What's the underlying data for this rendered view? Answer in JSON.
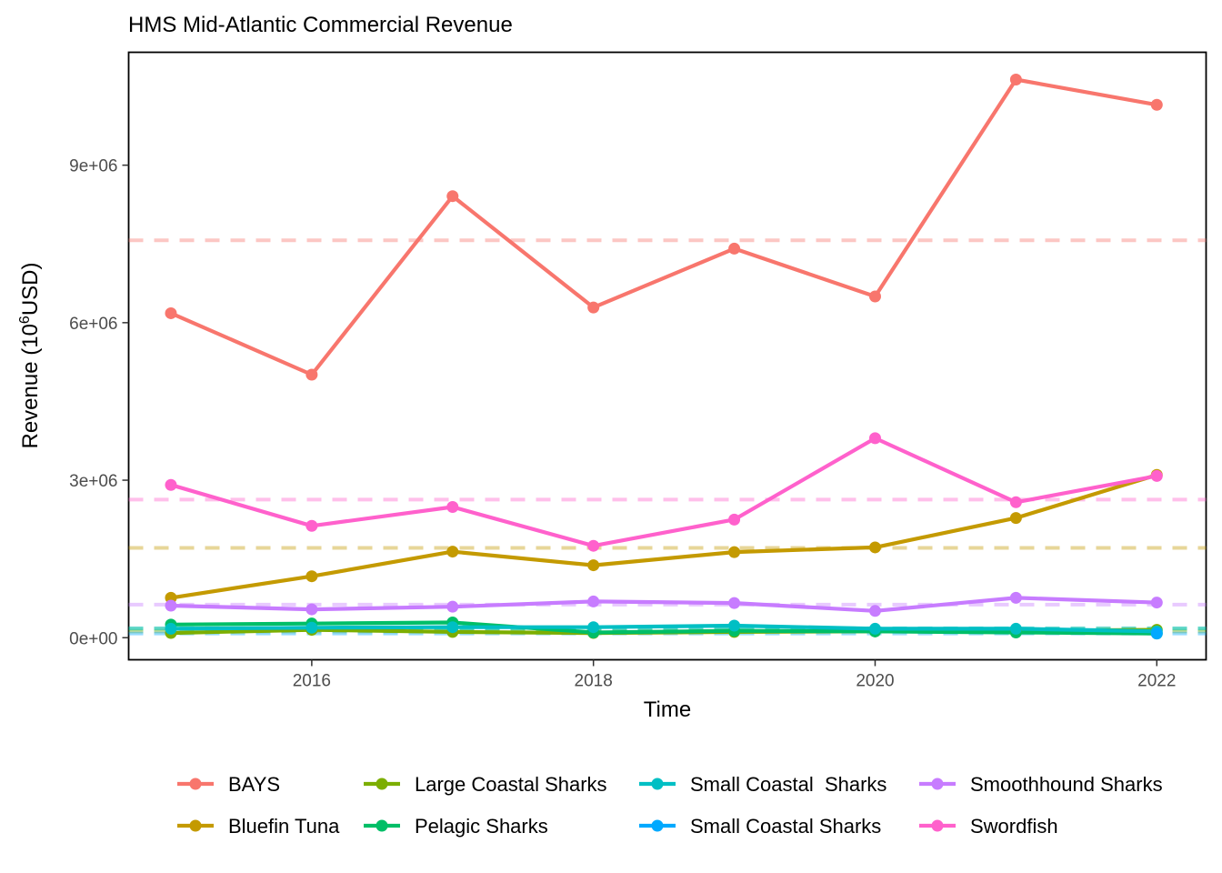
{
  "chart_data": {
    "type": "line",
    "title": "HMS Mid-Atlantic Commercial Revenue",
    "xlabel": "Time",
    "ylabel_prefix": "Revenue (10",
    "ylabel_superscript": "6",
    "ylabel_suffix": "USD)",
    "xlim": [
      2014.7,
      2022.35
    ],
    "ylim": [
      -420000,
      11150000
    ],
    "x_ticks": [
      2016,
      2018,
      2020,
      2022
    ],
    "x_tick_labels": [
      "2016",
      "2018",
      "2020",
      "2022"
    ],
    "y_ticks": [
      0,
      3000000,
      6000000,
      9000000
    ],
    "y_tick_labels": [
      "0e+00",
      "3e+06",
      "6e+06",
      "9e+06"
    ],
    "grid": false,
    "legend_position": "bottom",
    "x": [
      2015,
      2016,
      2017,
      2018,
      2019,
      2020,
      2021,
      2022
    ],
    "series": [
      {
        "name": "BAYS",
        "color": "#F8766D",
        "values": [
          6180000,
          5010000,
          8410000,
          6290000,
          7410000,
          6500000,
          10630000,
          10150000
        ],
        "mean": 7570000
      },
      {
        "name": "Bluefin Tuna",
        "color": "#C49A00",
        "values": [
          760000,
          1170000,
          1640000,
          1380000,
          1630000,
          1720000,
          2280000,
          3100000
        ],
        "mean": 1710000
      },
      {
        "name": "Large Coastal Sharks",
        "color": "#7CAE00",
        "values": [
          90000,
          150000,
          110000,
          90000,
          110000,
          120000,
          130000,
          150000
        ],
        "mean": 120000
      },
      {
        "name": "Pelagic Sharks",
        "color": "#00BE67",
        "values": [
          250000,
          270000,
          290000,
          100000,
          130000,
          120000,
          100000,
          80000
        ],
        "mean": 170000
      },
      {
        "name": "Small Coastal  Sharks",
        "color": "#00BFC4",
        "values": [
          170000,
          190000,
          200000,
          200000,
          230000,
          170000,
          170000,
          120000
        ],
        "mean": 180000
      },
      {
        "name": "Small Coastal Sharks",
        "color": "#00A9FF",
        "values": [
          null,
          null,
          null,
          null,
          null,
          null,
          null,
          80000
        ],
        "mean": 80000
      },
      {
        "name": "Smoothhound Sharks",
        "color": "#C77CFF",
        "values": [
          610000,
          540000,
          590000,
          690000,
          660000,
          510000,
          760000,
          670000
        ],
        "mean": 630000
      },
      {
        "name": "Swordfish",
        "color": "#FF61CC",
        "values": [
          2910000,
          2130000,
          2490000,
          1750000,
          2250000,
          3800000,
          2580000,
          3080000
        ],
        "mean": 2630000
      }
    ]
  }
}
